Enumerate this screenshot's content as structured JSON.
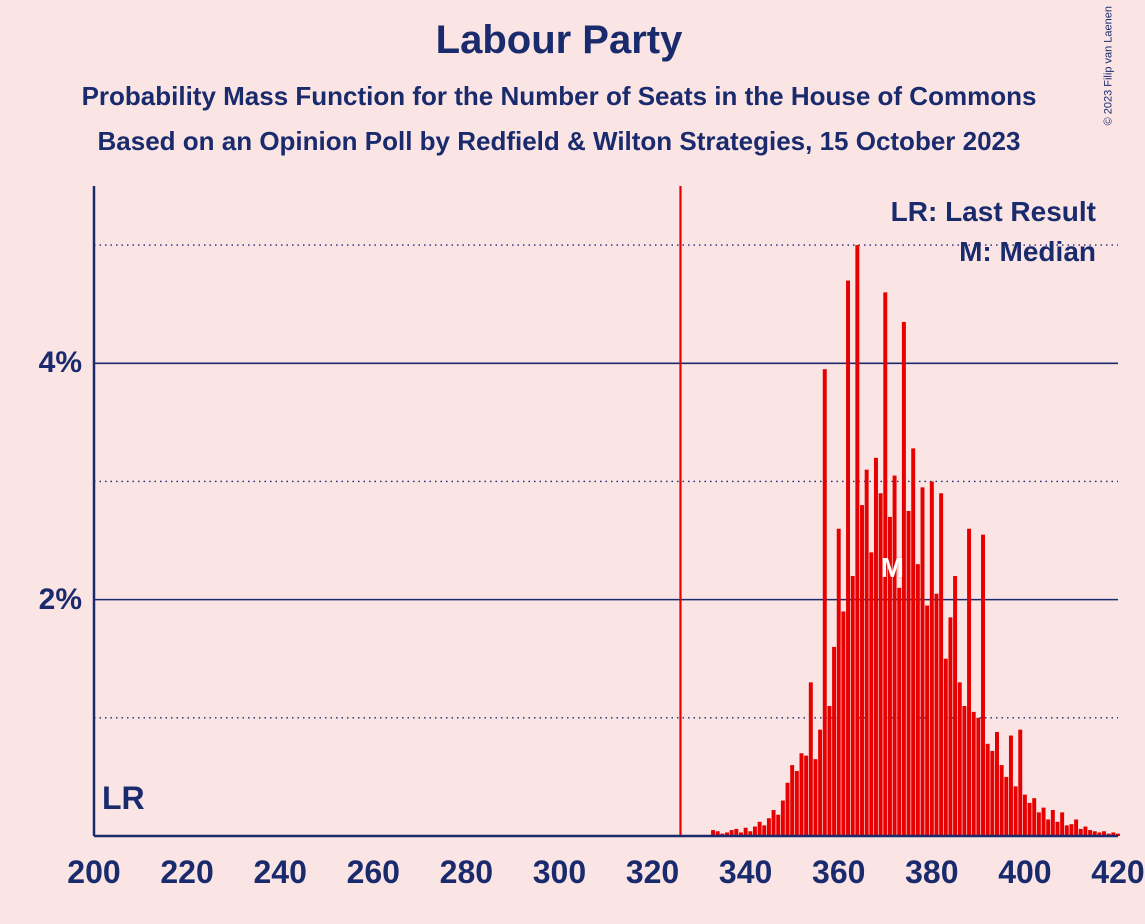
{
  "title": "Labour Party",
  "subtitle1": "Probability Mass Function for the Number of Seats in the House of Commons",
  "subtitle2": "Based on an Opinion Poll by Redfield & Wilton Strategies, 15 October 2023",
  "copyright": "© 2023 Filip van Laenen",
  "legend": {
    "lr": "LR: Last Result",
    "m": "M: Median"
  },
  "lr_marker": "LR",
  "m_marker": "M",
  "chart": {
    "type": "bar",
    "background_color": "#fbe4e4",
    "axis_color": "#1a2b6d",
    "bar_color": "#e60000",
    "xlim": [
      200,
      420
    ],
    "ylim": [
      0,
      5.5
    ],
    "x_ticks": [
      200,
      220,
      240,
      260,
      280,
      300,
      320,
      340,
      360,
      380,
      400,
      420
    ],
    "y_ticks_major": [
      2,
      4
    ],
    "y_ticks_minor": [
      1,
      3,
      5
    ],
    "y_tick_labels": {
      "2": "2%",
      "4": "4%"
    },
    "last_result_x": 326,
    "median_x": 372,
    "bar_width_seats": 0.85,
    "title_fontsize": 40,
    "subtitle_fontsize": 26,
    "axis_label_fontsize": 30,
    "data": [
      {
        "x": 333,
        "y": 0.05
      },
      {
        "x": 334,
        "y": 0.04
      },
      {
        "x": 335,
        "y": 0.02
      },
      {
        "x": 336,
        "y": 0.03
      },
      {
        "x": 337,
        "y": 0.05
      },
      {
        "x": 338,
        "y": 0.06
      },
      {
        "x": 339,
        "y": 0.03
      },
      {
        "x": 340,
        "y": 0.07
      },
      {
        "x": 341,
        "y": 0.04
      },
      {
        "x": 342,
        "y": 0.08
      },
      {
        "x": 343,
        "y": 0.12
      },
      {
        "x": 344,
        "y": 0.09
      },
      {
        "x": 345,
        "y": 0.15
      },
      {
        "x": 346,
        "y": 0.22
      },
      {
        "x": 347,
        "y": 0.18
      },
      {
        "x": 348,
        "y": 0.3
      },
      {
        "x": 349,
        "y": 0.45
      },
      {
        "x": 350,
        "y": 0.6
      },
      {
        "x": 351,
        "y": 0.55
      },
      {
        "x": 352,
        "y": 0.7
      },
      {
        "x": 353,
        "y": 0.68
      },
      {
        "x": 354,
        "y": 1.3
      },
      {
        "x": 355,
        "y": 0.65
      },
      {
        "x": 356,
        "y": 0.9
      },
      {
        "x": 357,
        "y": 3.95
      },
      {
        "x": 358,
        "y": 1.1
      },
      {
        "x": 359,
        "y": 1.6
      },
      {
        "x": 360,
        "y": 2.6
      },
      {
        "x": 361,
        "y": 1.9
      },
      {
        "x": 362,
        "y": 4.7
      },
      {
        "x": 363,
        "y": 2.2
      },
      {
        "x": 364,
        "y": 5.0
      },
      {
        "x": 365,
        "y": 2.8
      },
      {
        "x": 366,
        "y": 3.1
      },
      {
        "x": 367,
        "y": 2.4
      },
      {
        "x": 368,
        "y": 3.2
      },
      {
        "x": 369,
        "y": 2.9
      },
      {
        "x": 370,
        "y": 4.6
      },
      {
        "x": 371,
        "y": 2.7
      },
      {
        "x": 372,
        "y": 3.05
      },
      {
        "x": 373,
        "y": 2.1
      },
      {
        "x": 374,
        "y": 4.35
      },
      {
        "x": 375,
        "y": 2.75
      },
      {
        "x": 376,
        "y": 3.28
      },
      {
        "x": 377,
        "y": 2.3
      },
      {
        "x": 378,
        "y": 2.95
      },
      {
        "x": 379,
        "y": 1.95
      },
      {
        "x": 380,
        "y": 3.0
      },
      {
        "x": 381,
        "y": 2.05
      },
      {
        "x": 382,
        "y": 2.9
      },
      {
        "x": 383,
        "y": 1.5
      },
      {
        "x": 384,
        "y": 1.85
      },
      {
        "x": 385,
        "y": 2.2
      },
      {
        "x": 386,
        "y": 1.3
      },
      {
        "x": 387,
        "y": 1.1
      },
      {
        "x": 388,
        "y": 2.6
      },
      {
        "x": 389,
        "y": 1.05
      },
      {
        "x": 390,
        "y": 1.0
      },
      {
        "x": 391,
        "y": 2.55
      },
      {
        "x": 392,
        "y": 0.78
      },
      {
        "x": 393,
        "y": 0.72
      },
      {
        "x": 394,
        "y": 0.88
      },
      {
        "x": 395,
        "y": 0.6
      },
      {
        "x": 396,
        "y": 0.5
      },
      {
        "x": 397,
        "y": 0.85
      },
      {
        "x": 398,
        "y": 0.42
      },
      {
        "x": 399,
        "y": 0.9
      },
      {
        "x": 400,
        "y": 0.35
      },
      {
        "x": 401,
        "y": 0.28
      },
      {
        "x": 402,
        "y": 0.32
      },
      {
        "x": 403,
        "y": 0.2
      },
      {
        "x": 404,
        "y": 0.24
      },
      {
        "x": 405,
        "y": 0.14
      },
      {
        "x": 406,
        "y": 0.22
      },
      {
        "x": 407,
        "y": 0.12
      },
      {
        "x": 408,
        "y": 0.2
      },
      {
        "x": 409,
        "y": 0.09
      },
      {
        "x": 410,
        "y": 0.1
      },
      {
        "x": 411,
        "y": 0.14
      },
      {
        "x": 412,
        "y": 0.06
      },
      {
        "x": 413,
        "y": 0.08
      },
      {
        "x": 414,
        "y": 0.05
      },
      {
        "x": 415,
        "y": 0.04
      },
      {
        "x": 416,
        "y": 0.03
      },
      {
        "x": 417,
        "y": 0.04
      },
      {
        "x": 418,
        "y": 0.02
      },
      {
        "x": 419,
        "y": 0.03
      },
      {
        "x": 420,
        "y": 0.02
      }
    ]
  }
}
